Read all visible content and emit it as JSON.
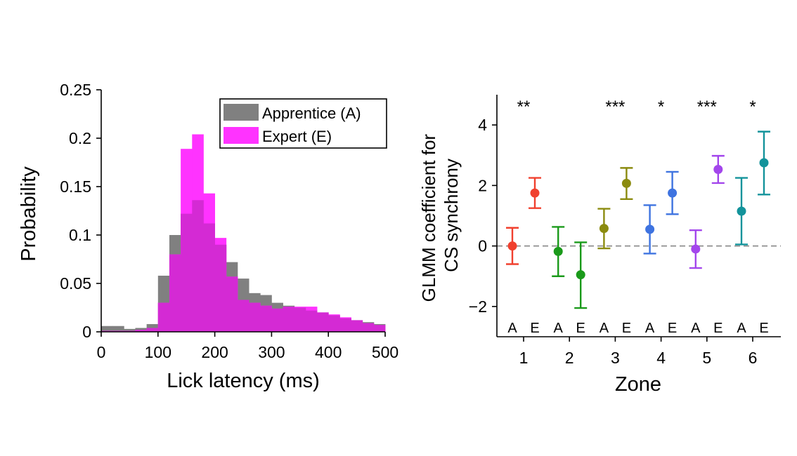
{
  "chart_data": [
    {
      "type": "bar",
      "subtype": "histogram",
      "title": "",
      "xlabel": "Lick latency (ms)",
      "ylabel": "Probability",
      "xlim": [
        0,
        500
      ],
      "ylim": [
        0,
        0.25
      ],
      "xticks": [
        "0",
        "100",
        "200",
        "300",
        "400",
        "500"
      ],
      "yticks": [
        "0",
        "0.05",
        "0.1",
        "0.15",
        "0.2",
        "0.25"
      ],
      "bin_width": 20,
      "bin_starts": [
        0,
        20,
        40,
        60,
        80,
        100,
        120,
        140,
        160,
        180,
        200,
        220,
        240,
        260,
        280,
        300,
        320,
        340,
        360,
        380,
        400,
        420,
        440,
        460,
        480
      ],
      "legend_position": "top-right",
      "series": [
        {
          "name": "Apprentice (A)",
          "color": "#808080",
          "values": [
            0.006,
            0.006,
            0.003,
            0.004,
            0.008,
            0.058,
            0.1,
            0.122,
            0.136,
            0.112,
            0.09,
            0.072,
            0.055,
            0.04,
            0.038,
            0.03,
            0.027,
            0.025,
            0.022,
            0.02,
            0.017,
            0.014,
            0.012,
            0.01,
            0.008
          ]
        },
        {
          "name": "Expert (E)",
          "color": "#ff33ff",
          "values": [
            0.001,
            0.001,
            0.001,
            0.002,
            0.004,
            0.03,
            0.08,
            0.189,
            0.204,
            0.143,
            0.097,
            0.057,
            0.033,
            0.03,
            0.027,
            0.024,
            0.026,
            0.026,
            0.026,
            0.02,
            0.018,
            0.015,
            0.012,
            0.009,
            0.007
          ]
        }
      ]
    },
    {
      "type": "scatter",
      "subtype": "error-bar",
      "title": "",
      "xlabel": "Zone",
      "ylabel": "GLMM coefficient for CS synchrony",
      "ylabel_lines": [
        "GLMM coefficient for",
        "CS synchrony"
      ],
      "ylim": [
        -3,
        5
      ],
      "yticks": [
        -2,
        0,
        2,
        4
      ],
      "ytick_labels": [
        "−2",
        "0",
        "2",
        "4"
      ],
      "reference_line": 0,
      "categories": [
        "1",
        "2",
        "3",
        "4",
        "5",
        "6"
      ],
      "group_labels": [
        "A",
        "E"
      ],
      "points": [
        {
          "zone": "1",
          "group": "A",
          "y": 0.0,
          "lo": -0.6,
          "hi": 0.6,
          "color": "#f0402e"
        },
        {
          "zone": "1",
          "group": "E",
          "y": 1.75,
          "lo": 1.25,
          "hi": 2.25,
          "color": "#f0402e"
        },
        {
          "zone": "2",
          "group": "A",
          "y": -0.18,
          "lo": -1.0,
          "hi": 0.63,
          "color": "#1a9a1a"
        },
        {
          "zone": "2",
          "group": "E",
          "y": -0.95,
          "lo": -2.05,
          "hi": 0.12,
          "color": "#1a9a1a"
        },
        {
          "zone": "3",
          "group": "A",
          "y": 0.58,
          "lo": -0.08,
          "hi": 1.23,
          "color": "#8b8b0f"
        },
        {
          "zone": "3",
          "group": "E",
          "y": 2.07,
          "lo": 1.55,
          "hi": 2.58,
          "color": "#8b8b0f"
        },
        {
          "zone": "4",
          "group": "A",
          "y": 0.55,
          "lo": -0.25,
          "hi": 1.35,
          "color": "#3e73e0"
        },
        {
          "zone": "4",
          "group": "E",
          "y": 1.75,
          "lo": 1.05,
          "hi": 2.45,
          "color": "#3e73e0"
        },
        {
          "zone": "5",
          "group": "A",
          "y": -0.1,
          "lo": -0.73,
          "hi": 0.52,
          "color": "#a346ec"
        },
        {
          "zone": "5",
          "group": "E",
          "y": 2.53,
          "lo": 2.08,
          "hi": 2.98,
          "color": "#a346ec"
        },
        {
          "zone": "6",
          "group": "A",
          "y": 1.15,
          "lo": 0.05,
          "hi": 2.25,
          "color": "#13939b"
        },
        {
          "zone": "6",
          "group": "E",
          "y": 2.75,
          "lo": 1.7,
          "hi": 3.78,
          "color": "#13939b"
        }
      ],
      "significance": [
        {
          "zone": "1",
          "label": "**"
        },
        {
          "zone": "3",
          "label": "***"
        },
        {
          "zone": "4",
          "label": "*"
        },
        {
          "zone": "5",
          "label": "***"
        },
        {
          "zone": "6",
          "label": "*"
        }
      ]
    }
  ]
}
